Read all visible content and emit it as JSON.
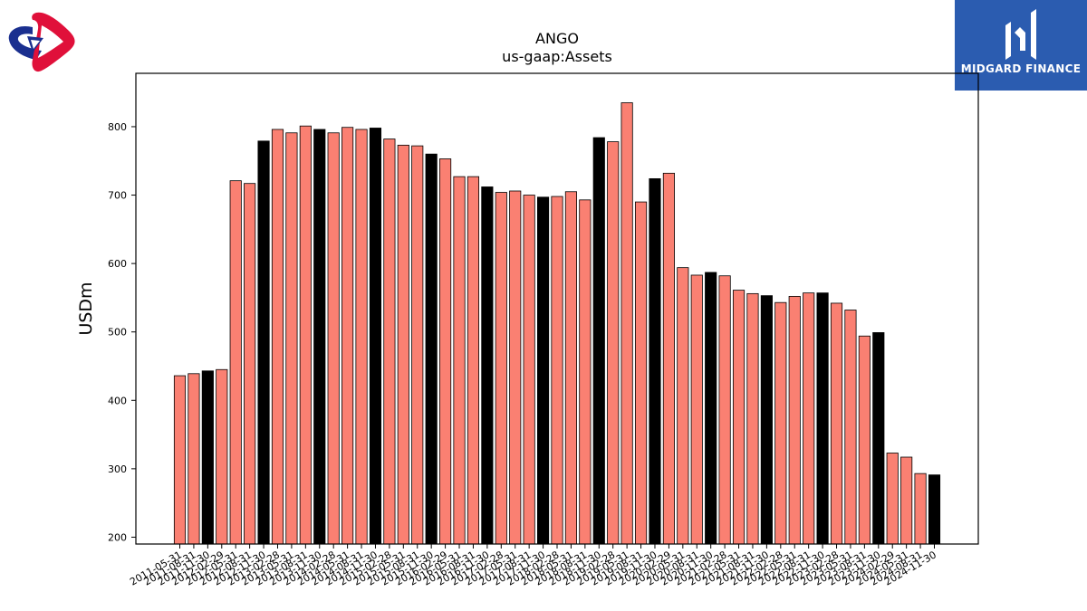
{
  "brand": {
    "left_logo_icon": "red-blue-triangular-loop-logo",
    "right_logo_icon": "midgard-finance-logo",
    "right_name": "MIDGARD FINANCE",
    "right_bg": "#2b5cb0"
  },
  "colors": {
    "bar_regular": "#fa8072",
    "bar_highlight": "#000000",
    "bar_edge": "#000000",
    "logo_red": "#e0103a",
    "logo_blue": "#1a2f8f"
  },
  "chart_data": {
    "type": "bar",
    "title": "ANGO",
    "subtitle": "us-gaap:Assets",
    "xlabel": "",
    "ylabel": "USDm",
    "ylim": [
      190,
      878
    ],
    "yticks": [
      200,
      300,
      400,
      500,
      600,
      700,
      800
    ],
    "grid": false,
    "categories": [
      "2011-05-31",
      "2011-08-31",
      "2011-11-30",
      "2012-02-29",
      "2012-05-31",
      "2012-08-31",
      "2012-11-30",
      "2013-02-28",
      "2013-05-31",
      "2013-08-31",
      "2013-11-30",
      "2014-02-28",
      "2014-05-31",
      "2014-08-31",
      "2014-11-30",
      "2015-02-28",
      "2015-05-31",
      "2015-08-31",
      "2015-11-30",
      "2016-02-29",
      "2016-05-31",
      "2016-08-31",
      "2016-11-30",
      "2017-02-28",
      "2017-05-31",
      "2017-08-31",
      "2017-11-30",
      "2018-02-28",
      "2018-05-31",
      "2018-08-31",
      "2018-11-30",
      "2019-02-28",
      "2019-05-31",
      "2019-08-31",
      "2019-11-30",
      "2020-02-29",
      "2020-05-31",
      "2020-08-31",
      "2020-11-30",
      "2021-02-28",
      "2021-05-31",
      "2021-08-31",
      "2021-11-30",
      "2022-02-28",
      "2022-05-31",
      "2022-08-31",
      "2022-11-30",
      "2023-02-28",
      "2023-05-31",
      "2023-08-31",
      "2023-11-30",
      "2024-02-29",
      "2024-05-31",
      "2024-08-31",
      "2024-11-30"
    ],
    "values": [
      436,
      439,
      443,
      445,
      721,
      717,
      779,
      796,
      791,
      801,
      796,
      791,
      799,
      796,
      798,
      782,
      773,
      772,
      760,
      753,
      727,
      727,
      712,
      704,
      706,
      700,
      697,
      698,
      705,
      693,
      784,
      778,
      835,
      690,
      724,
      732,
      594,
      583,
      587,
      582,
      561,
      556,
      553,
      543,
      552,
      557,
      557,
      542,
      532,
      494,
      499,
      323,
      317,
      293,
      291
    ],
    "highlight_indices": [
      2,
      6,
      10,
      14,
      18,
      22,
      26,
      30,
      34,
      38,
      42,
      46,
      50,
      54
    ]
  }
}
